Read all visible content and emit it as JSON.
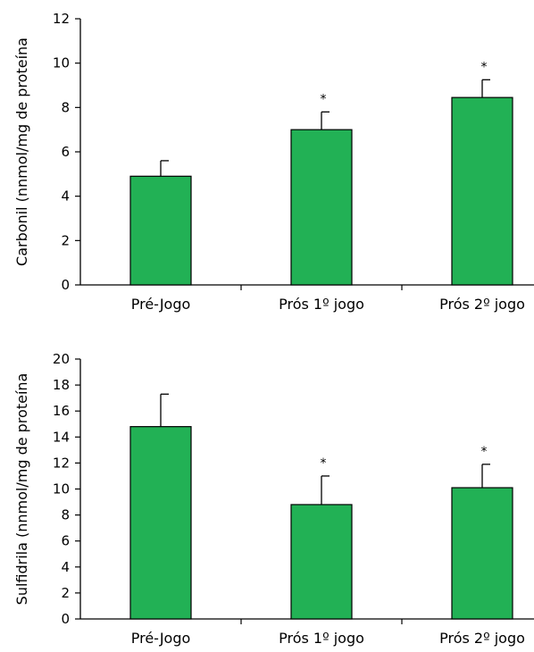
{
  "chart_data": [
    {
      "type": "bar",
      "ylabel": "Carbonil (nnmol/mg de proteína",
      "categories": [
        "Pré-Jogo",
        "Prós 1º jogo",
        "Prós 2º jogo"
      ],
      "values": [
        4.9,
        7.0,
        8.45
      ],
      "errors": [
        0.7,
        0.8,
        0.8
      ],
      "annotations": [
        "",
        "*",
        "*"
      ],
      "ylim": [
        0,
        12
      ],
      "yticks": [
        0,
        2,
        4,
        6,
        8,
        10,
        12
      ],
      "bar_color": "#22b155"
    },
    {
      "type": "bar",
      "ylabel": "Sulfidrila (nnmol/mg de proteína",
      "categories": [
        "Pré-Jogo",
        "Prós 1º jogo",
        "Prós 2º jogo"
      ],
      "values": [
        14.8,
        8.8,
        10.1
      ],
      "errors": [
        2.5,
        2.2,
        1.8
      ],
      "annotations": [
        "",
        "*",
        "*"
      ],
      "ylim": [
        0,
        20
      ],
      "yticks": [
        0,
        2,
        4,
        6,
        8,
        10,
        12,
        14,
        16,
        18,
        20
      ],
      "bar_color": "#22b155"
    }
  ]
}
